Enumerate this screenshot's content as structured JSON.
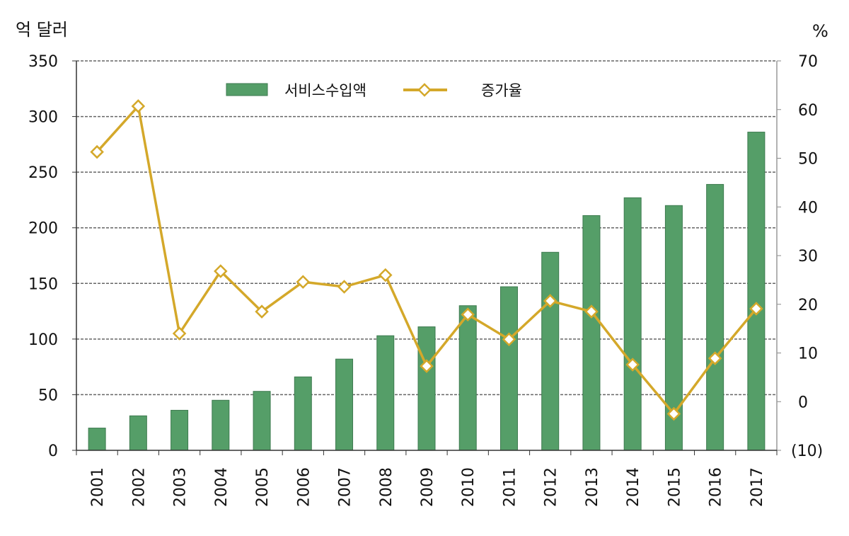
{
  "chart_data": {
    "type": "bar+line",
    "categories": [
      "2001",
      "2002",
      "2003",
      "2004",
      "2005",
      "2006",
      "2007",
      "2008",
      "2009",
      "2010",
      "2011",
      "2012",
      "2013",
      "2014",
      "2015",
      "2016",
      "2017"
    ],
    "series": [
      {
        "name": "서비스수입액",
        "type": "bar",
        "axis": "left",
        "color": "#559e68",
        "values": [
          20,
          31,
          36,
          45,
          53,
          66,
          82,
          103,
          111,
          130,
          147,
          178,
          211,
          227,
          220,
          239,
          286
        ]
      },
      {
        "name": "증가율",
        "type": "line",
        "axis": "right",
        "color": "#d4a82a",
        "values": [
          51.3,
          60.7,
          14.0,
          26.8,
          18.5,
          24.6,
          23.6,
          26.0,
          7.3,
          17.9,
          12.8,
          20.7,
          18.5,
          7.6,
          -2.5,
          8.9,
          19.1
        ]
      }
    ],
    "left_axis": {
      "label": "억 달러",
      "range": [
        0,
        350
      ],
      "ticks": [
        "0",
        "50",
        "100",
        "150",
        "200",
        "250",
        "300",
        "350"
      ]
    },
    "right_axis": {
      "label": "%",
      "range": [
        -10,
        70
      ],
      "ticks": [
        "(10)",
        "0",
        "10",
        "20",
        "30",
        "40",
        "50",
        "60",
        "70"
      ]
    },
    "grid": true,
    "legend_position": "top-center"
  }
}
